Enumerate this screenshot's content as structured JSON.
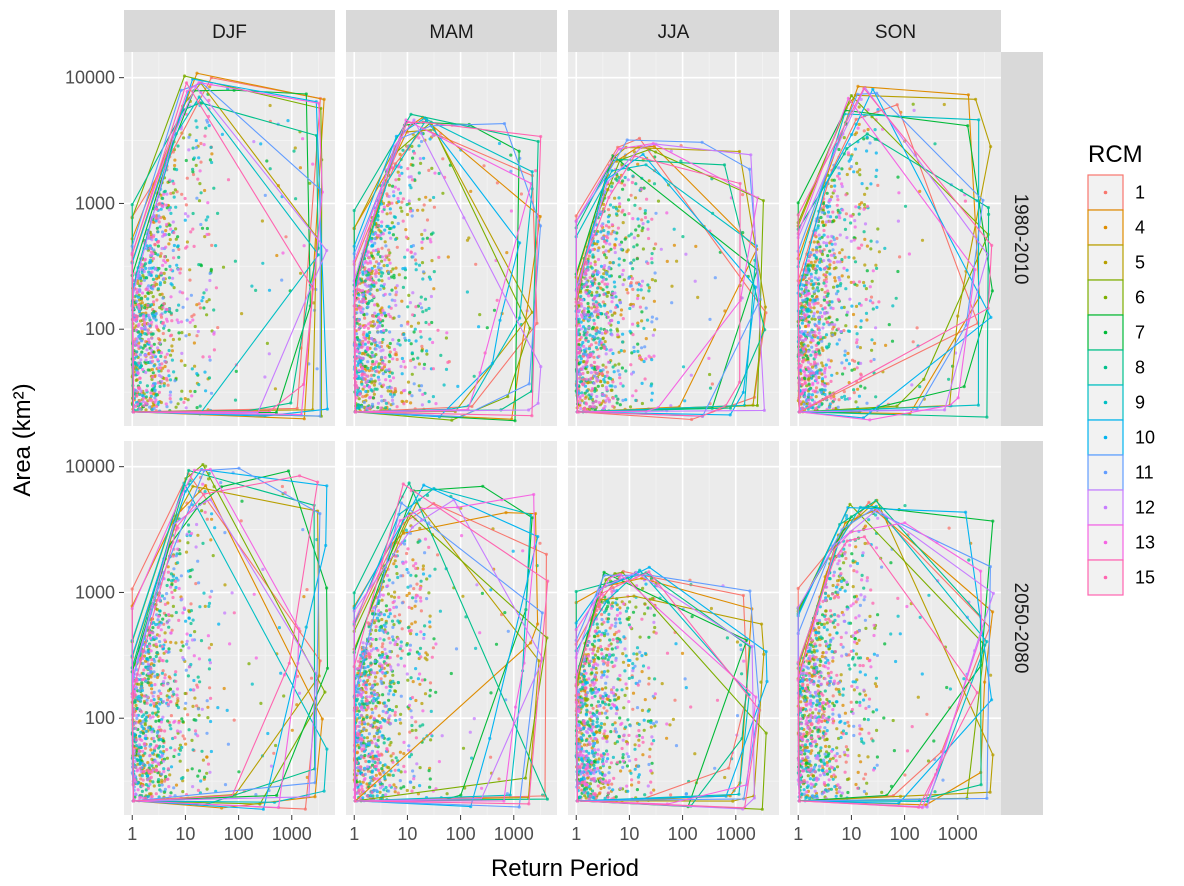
{
  "chart_data": {
    "type": "scatter",
    "subtype": "faceted scatter with convex hull polygons",
    "xlabel": "Return Period",
    "ylabel": "Area (km²)",
    "x_scale": "log10",
    "y_scale": "log10",
    "x_ticks": [
      1,
      10,
      100,
      1000
    ],
    "x_tick_labels": [
      "1",
      "10",
      "100",
      "1000"
    ],
    "y_ticks": [
      100,
      1000,
      10000
    ],
    "y_tick_labels": [
      "100",
      "1000",
      "10000"
    ],
    "xlim": [
      0.7,
      6500
    ],
    "ylim": [
      17,
      16000
    ],
    "grid": true,
    "legend": {
      "title": "RCM",
      "position": "right",
      "entries": [
        "1",
        "4",
        "5",
        "6",
        "7",
        "8",
        "9",
        "10",
        "11",
        "12",
        "13",
        "15"
      ],
      "colors": [
        "#F8766D",
        "#DE8C00",
        "#B79F00",
        "#7CAE00",
        "#00BA38",
        "#00C08B",
        "#00BFC4",
        "#00B4F0",
        "#619CFF",
        "#C77CFF",
        "#F564E3",
        "#FF64B0"
      ]
    },
    "facet_columns": [
      "DJF",
      "MAM",
      "JJA",
      "SON"
    ],
    "facet_rows": [
      "1980-2010",
      "2050-2080"
    ],
    "panels": [
      {
        "row": "1980-2010",
        "col": "DJF",
        "max_return_period": 5000,
        "max_area": 12000,
        "hull_ymin": 22
      },
      {
        "row": "1980-2010",
        "col": "MAM",
        "max_return_period": 3500,
        "max_area": 5500,
        "hull_ymin": 22
      },
      {
        "row": "1980-2010",
        "col": "JJA",
        "max_return_period": 4000,
        "max_area": 3500,
        "hull_ymin": 22
      },
      {
        "row": "1980-2010",
        "col": "SON",
        "max_return_period": 4500,
        "max_area": 9000,
        "hull_ymin": 22
      },
      {
        "row": "2050-2080",
        "col": "DJF",
        "max_return_period": 5000,
        "max_area": 12000,
        "hull_ymin": 22
      },
      {
        "row": "2050-2080",
        "col": "MAM",
        "max_return_period": 5000,
        "max_area": 8000,
        "hull_ymin": 22
      },
      {
        "row": "2050-2080",
        "col": "JJA",
        "max_return_period": 4000,
        "max_area": 1700,
        "hull_ymin": 22
      },
      {
        "row": "2050-2080",
        "col": "SON",
        "max_return_period": 5000,
        "max_area": 6000,
        "hull_ymin": 22
      }
    ]
  }
}
